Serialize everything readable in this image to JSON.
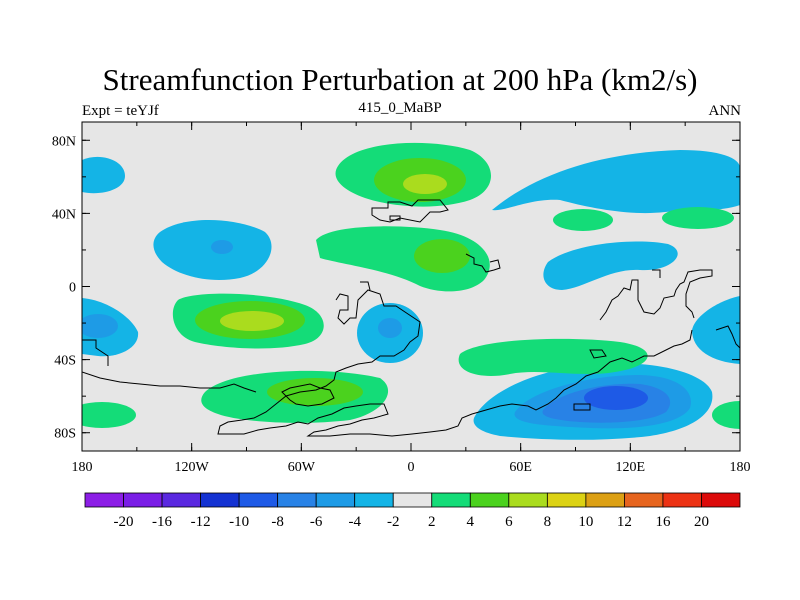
{
  "chart_data": {
    "type": "contour_map",
    "title": "Streamfunction Perturbation at 200 hPa (km2/s)",
    "left_string": "Expt = teYJf",
    "center_string": "415_0_MaBP",
    "right_string": "ANN",
    "x_ticks": [
      {
        "value": -180,
        "label": "180"
      },
      {
        "value": -120,
        "label": "120W"
      },
      {
        "value": -60,
        "label": "60W"
      },
      {
        "value": 0,
        "label": "0"
      },
      {
        "value": 60,
        "label": "60E"
      },
      {
        "value": 120,
        "label": "120E"
      },
      {
        "value": 180,
        "label": "180"
      }
    ],
    "y_ticks": [
      {
        "value": 80,
        "label": "80N"
      },
      {
        "value": 40,
        "label": "40N"
      },
      {
        "value": 0,
        "label": "0"
      },
      {
        "value": -40,
        "label": "40S"
      },
      {
        "value": -80,
        "label": "80S"
      }
    ],
    "xlim": [
      -180,
      180
    ],
    "ylim": [
      -90,
      90
    ],
    "colorbar": {
      "labels": [
        "-20",
        "-16",
        "-12",
        "-10",
        "-8",
        "-6",
        "-4",
        "-2",
        "2",
        "4",
        "6",
        "8",
        "10",
        "12",
        "16",
        "20"
      ],
      "colors": [
        "#8c1ee6",
        "#7a1ee6",
        "#5a28e0",
        "#1432d2",
        "#1e5ae6",
        "#2882e6",
        "#1e9be6",
        "#14b4e6",
        "#e6e6e6",
        "#14dc78",
        "#4bd21e",
        "#aadc1e",
        "#dcd214",
        "#dca014",
        "#e6641e",
        "#ec3214",
        "#dc0a0a"
      ]
    },
    "features": [
      {
        "name": "positive-north-atlantic",
        "value_max": 8,
        "lon": 5,
        "lat": 58
      },
      {
        "name": "positive-west-asia",
        "value_max": 6,
        "lon": 10,
        "lat": 18
      },
      {
        "name": "positive-south-pacific-east",
        "value_max": 8,
        "lon": -92,
        "lat": -20
      },
      {
        "name": "positive-south-atlantic",
        "value_max": 6,
        "lon": -62,
        "lat": -58
      },
      {
        "name": "negative-south-indian-ocean",
        "value_min": -8,
        "lon": 120,
        "lat": -60
      },
      {
        "name": "negative-north-america",
        "value_min": -6,
        "lon": -105,
        "lat": 20
      },
      {
        "name": "negative-north-pacific",
        "value_min": -4,
        "lon": 130,
        "lat": 60
      }
    ]
  }
}
